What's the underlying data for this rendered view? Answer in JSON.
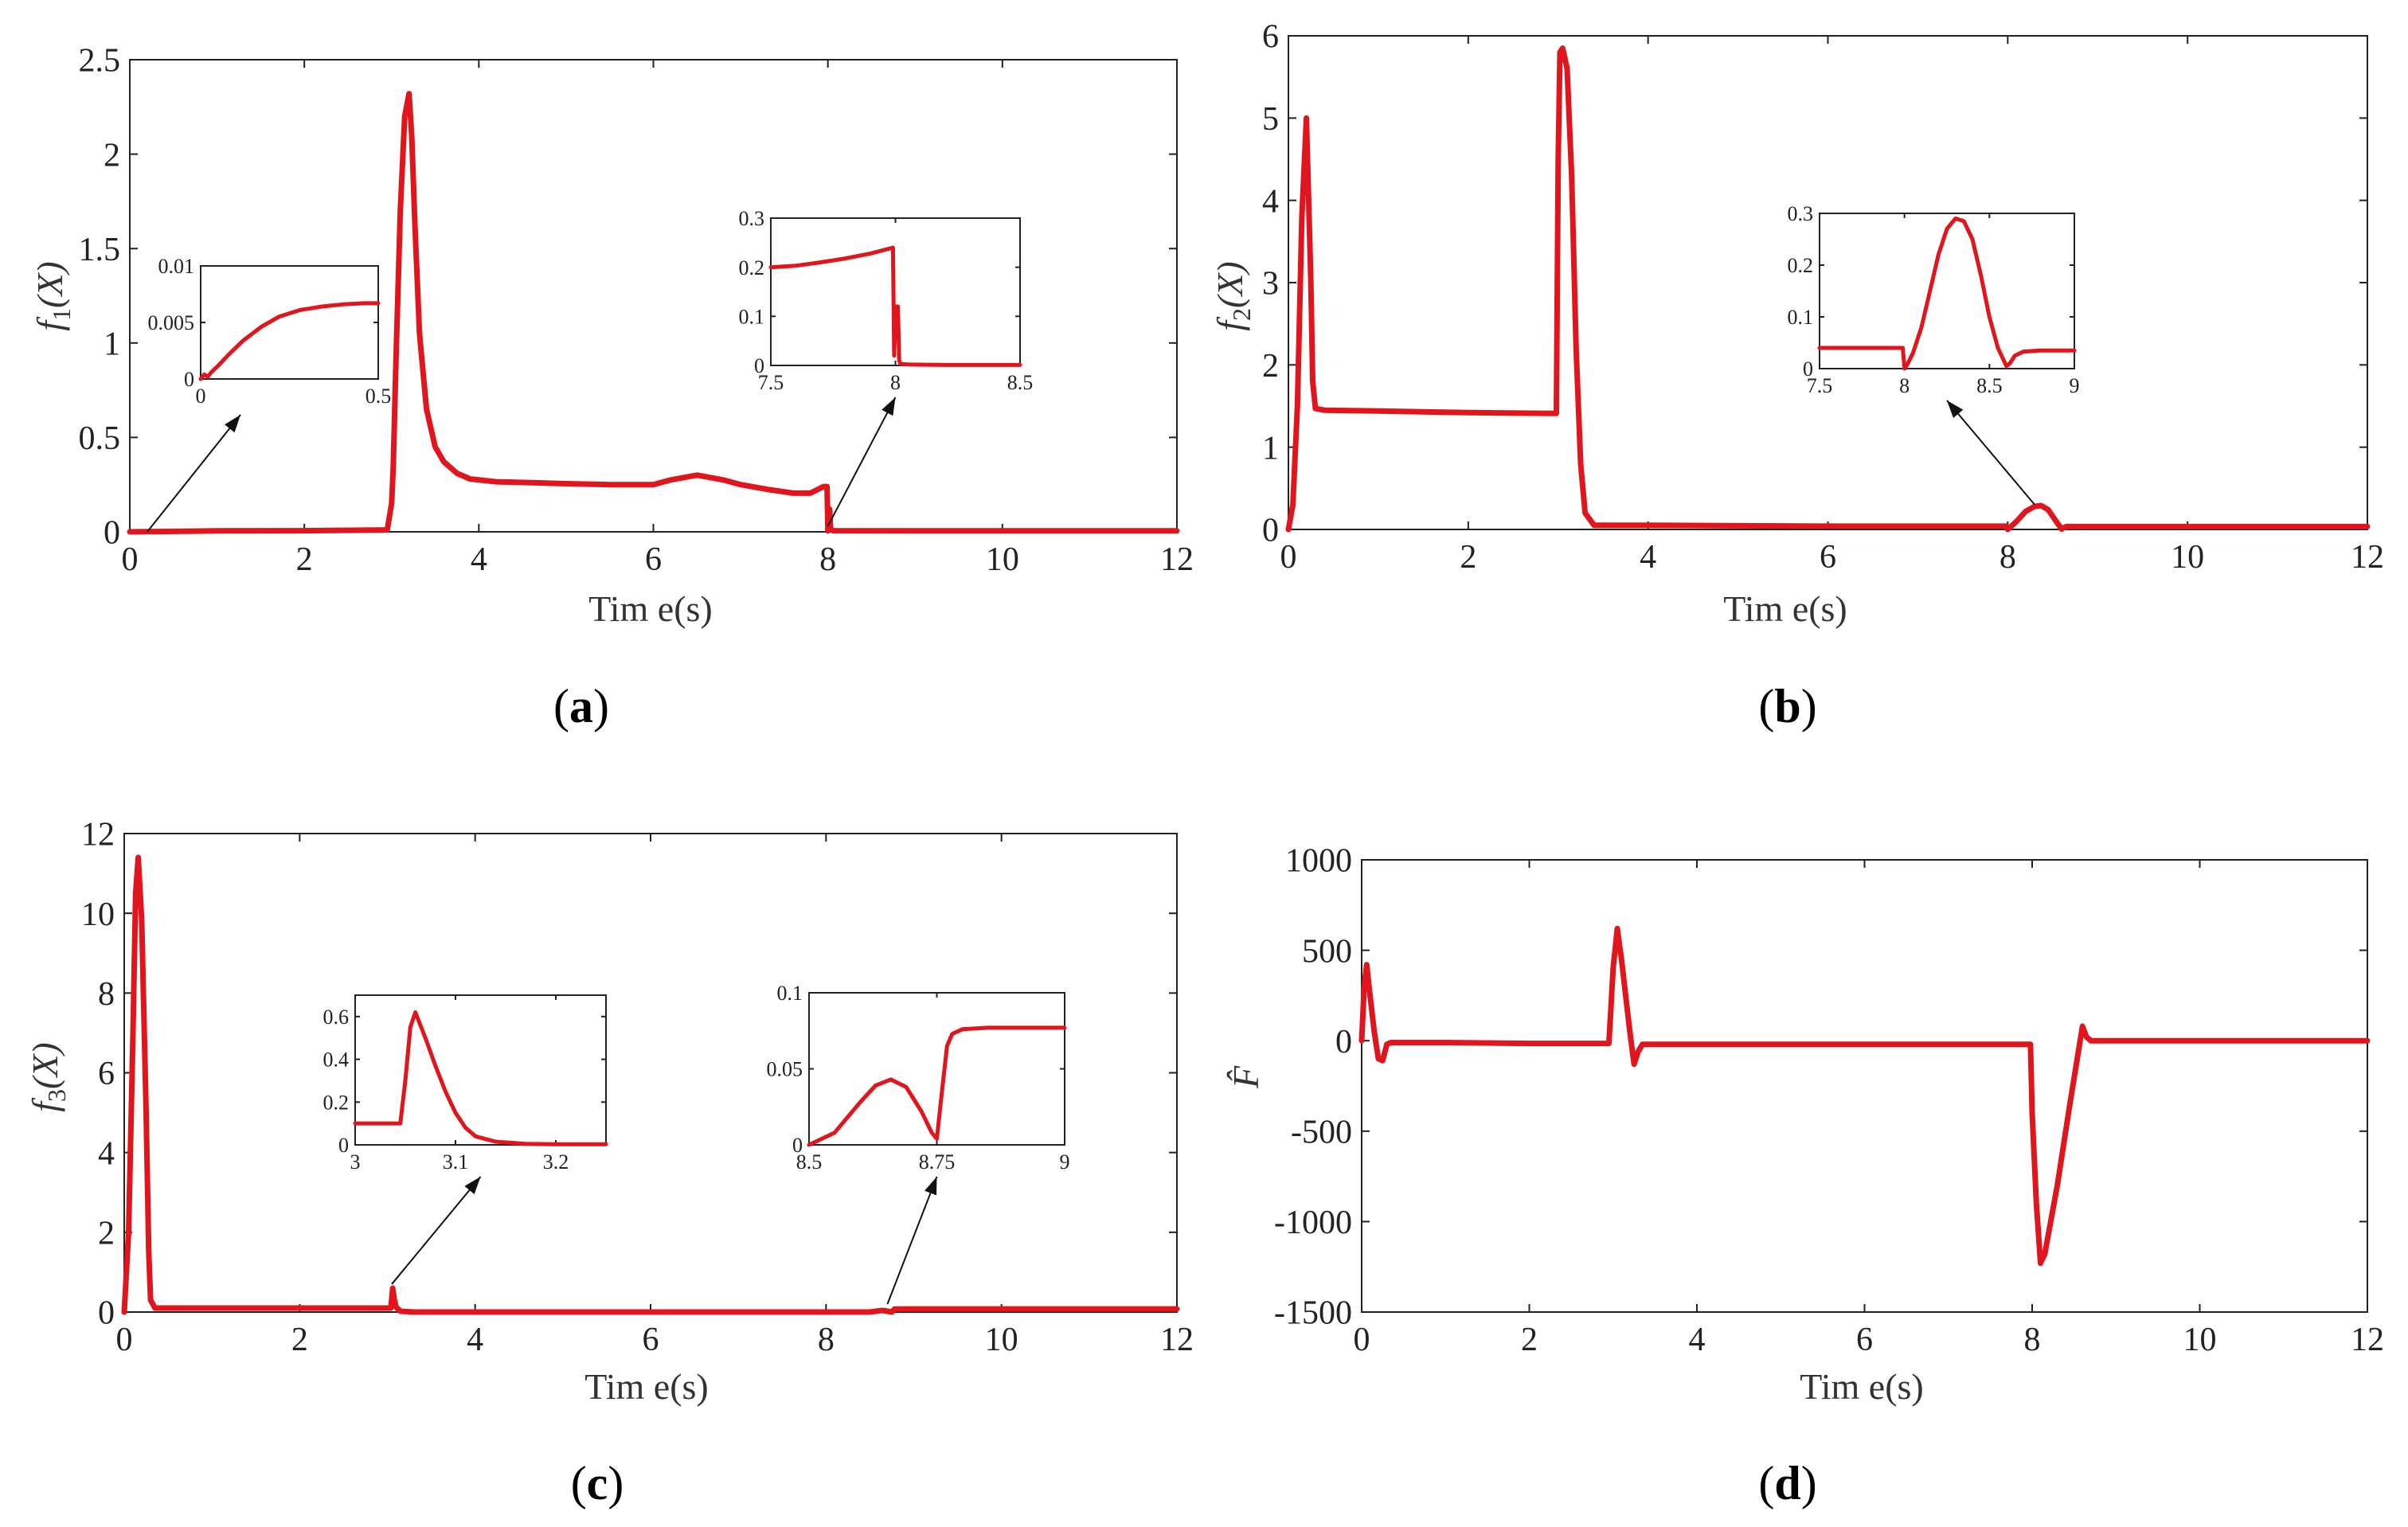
{
  "figure": {
    "panels": [
      {
        "id": "a",
        "caption_letter": "a",
        "caption": "(a)",
        "ylabel": "f1(X)",
        "ylabel_base": "f",
        "ylabel_sub": "1",
        "ylabel_arg": "(X)",
        "xlabel": "Tim e(s)",
        "color": "#e0151d"
      },
      {
        "id": "b",
        "caption_letter": "b",
        "caption": "(b)",
        "ylabel": "f2(X)",
        "ylabel_base": "f",
        "ylabel_sub": "2",
        "ylabel_arg": "(X)",
        "xlabel": "Tim e(s)",
        "color": "#e0151d"
      },
      {
        "id": "c",
        "caption_letter": "c",
        "caption": "(c)",
        "ylabel": "f3(X)",
        "ylabel_base": "f",
        "ylabel_sub": "3",
        "ylabel_arg": "(X)",
        "xlabel": "Tim e(s)",
        "color": "#e0151d"
      },
      {
        "id": "d",
        "caption_letter": "d",
        "caption": "(d)",
        "ylabel": "F̂",
        "ylabel_base": "F̂",
        "ylabel_sub": "",
        "ylabel_arg": "",
        "xlabel": "Tim e(s)",
        "color": "#e0151d"
      }
    ]
  },
  "chart_data": [
    {
      "panel": "a",
      "type": "line",
      "title": "",
      "xlabel": "Time(s)",
      "ylabel": "f1(X)",
      "xlim": [
        0,
        12
      ],
      "ylim": [
        0,
        2.5
      ],
      "xticks": [
        0,
        2,
        4,
        6,
        8,
        10,
        12
      ],
      "yticks": [
        0,
        0.5,
        1,
        1.5,
        2,
        2.5
      ],
      "xtick_labels": [
        "0",
        "2",
        "4",
        "6",
        "8",
        "10",
        "12"
      ],
      "ytick_labels": [
        "0",
        "0.5",
        "1",
        "1.5",
        "2",
        "2.5"
      ],
      "series": [
        {
          "name": "f1(X)",
          "x": [
            0,
            1.0,
            2.0,
            2.95,
            3.0,
            3.02,
            3.05,
            3.1,
            3.15,
            3.2,
            3.23,
            3.27,
            3.32,
            3.4,
            3.5,
            3.6,
            3.75,
            3.9,
            4.2,
            4.6,
            5.0,
            5.5,
            6.0,
            6.2,
            6.5,
            6.8,
            7.0,
            7.3,
            7.6,
            7.8,
            7.95,
            7.99,
            8.0,
            8.01,
            8.02,
            8.03,
            8.04,
            8.06,
            9.0,
            10.0,
            11.0,
            12.0
          ],
          "y": [
            0,
            0.005,
            0.006,
            0.01,
            0.15,
            0.35,
            0.9,
            1.7,
            2.2,
            2.32,
            2.1,
            1.6,
            1.05,
            0.65,
            0.45,
            0.37,
            0.31,
            0.28,
            0.265,
            0.26,
            0.255,
            0.25,
            0.25,
            0.275,
            0.3,
            0.275,
            0.25,
            0.225,
            0.205,
            0.205,
            0.24,
            0.24,
            0.005,
            0.12,
            0.12,
            0.02,
            0.01,
            0.006,
            0.005,
            0.005,
            0.005,
            0.005
          ]
        }
      ],
      "insets": [
        {
          "xlim": [
            0,
            0.5
          ],
          "ylim": [
            0,
            0.01
          ],
          "xticks": [
            0,
            0.5
          ],
          "yticks": [
            0,
            0.005,
            0.01
          ],
          "xtick_labels": [
            "0",
            "0.5"
          ],
          "ytick_labels": [
            "0",
            "0.005",
            "0.01"
          ],
          "x": [
            0,
            0.01,
            0.02,
            0.03,
            0.05,
            0.08,
            0.12,
            0.17,
            0.22,
            0.28,
            0.34,
            0.4,
            0.46,
            0.5
          ],
          "y": [
            0,
            0.0004,
            0.0002,
            0.0006,
            0.0012,
            0.0022,
            0.0034,
            0.0046,
            0.0055,
            0.0061,
            0.0064,
            0.0066,
            0.0067,
            0.0067
          ],
          "arrow_from_data": [
            0.2,
            0.0
          ],
          "arrow_to_inset": "bottom-left"
        },
        {
          "xlim": [
            7.5,
            8.5
          ],
          "ylim": [
            0,
            0.3
          ],
          "xticks": [
            7.5,
            8,
            8.5
          ],
          "yticks": [
            0,
            0.1,
            0.2,
            0.3
          ],
          "xtick_labels": [
            "7.5",
            "8",
            "8.5"
          ],
          "ytick_labels": [
            "0",
            "0.1",
            "0.2",
            "0.3"
          ],
          "x": [
            7.5,
            7.6,
            7.7,
            7.8,
            7.9,
            7.99,
            7.995,
            8.0,
            8.005,
            8.01,
            8.015,
            8.02,
            8.05,
            8.2,
            8.5
          ],
          "y": [
            0.2,
            0.203,
            0.21,
            0.218,
            0.228,
            0.24,
            0.02,
            0.1,
            0.12,
            0.12,
            0.01,
            0.003,
            0.002,
            0.001,
            0.001
          ],
          "arrow_from_data": [
            8.0,
            0.03
          ],
          "arrow_to_inset": "bottom-middle"
        }
      ]
    },
    {
      "panel": "b",
      "type": "line",
      "title": "",
      "xlabel": "Time(s)",
      "ylabel": "f2(X)",
      "xlim": [
        0,
        12
      ],
      "ylim": [
        0,
        6
      ],
      "xticks": [
        0,
        2,
        4,
        6,
        8,
        10,
        12
      ],
      "yticks": [
        0,
        1,
        2,
        3,
        4,
        5,
        6
      ],
      "xtick_labels": [
        "0",
        "2",
        "4",
        "6",
        "8",
        "10",
        "12"
      ],
      "ytick_labels": [
        "0",
        "1",
        "2",
        "3",
        "4",
        "5",
        "6"
      ],
      "series": [
        {
          "name": "f2(X)",
          "x": [
            0,
            0.05,
            0.1,
            0.15,
            0.2,
            0.25,
            0.27,
            0.3,
            0.4,
            1.0,
            2.0,
            2.98,
            3.0,
            3.02,
            3.05,
            3.1,
            3.15,
            3.2,
            3.25,
            3.3,
            3.4,
            4.0,
            6.0,
            7.98,
            8.0,
            8.1,
            8.2,
            8.3,
            8.37,
            8.45,
            8.55,
            8.6,
            8.62,
            8.65,
            9.0,
            12.0
          ],
          "y": [
            0,
            0.3,
            1.5,
            3.8,
            5.0,
            3.0,
            1.8,
            1.47,
            1.45,
            1.44,
            1.42,
            1.41,
            4.5,
            5.8,
            5.85,
            5.6,
            4.3,
            2.2,
            0.8,
            0.2,
            0.05,
            0.05,
            0.04,
            0.04,
            0.0,
            0.1,
            0.22,
            0.28,
            0.29,
            0.24,
            0.08,
            0.005,
            0.02,
            0.035,
            0.035,
            0.035
          ]
        }
      ],
      "insets": [
        {
          "xlim": [
            7.5,
            9
          ],
          "ylim": [
            0,
            0.3
          ],
          "xticks": [
            7.5,
            8,
            8.5,
            9
          ],
          "yticks": [
            0,
            0.1,
            0.2,
            0.3
          ],
          "xtick_labels": [
            "7.5",
            "8",
            "8.5",
            "9"
          ],
          "ytick_labels": [
            "0",
            "0.1",
            "0.2",
            "0.3"
          ],
          "x": [
            7.5,
            7.8,
            7.99,
            8.0,
            8.02,
            8.05,
            8.1,
            8.15,
            8.2,
            8.25,
            8.3,
            8.35,
            8.4,
            8.45,
            8.5,
            8.55,
            8.6,
            8.62,
            8.65,
            8.7,
            8.8,
            9.0
          ],
          "y": [
            0.04,
            0.04,
            0.04,
            0.0,
            0.01,
            0.03,
            0.08,
            0.15,
            0.22,
            0.27,
            0.29,
            0.285,
            0.25,
            0.18,
            0.1,
            0.04,
            0.005,
            0.01,
            0.025,
            0.033,
            0.035,
            0.035
          ],
          "arrow_from_data": [
            8.3,
            0.3
          ],
          "arrow_to_inset": "bottom-middle"
        }
      ]
    },
    {
      "panel": "c",
      "type": "line",
      "title": "",
      "xlabel": "Time(s)",
      "ylabel": "f3(X)",
      "xlim": [
        0,
        12
      ],
      "ylim": [
        0,
        12
      ],
      "xticks": [
        0,
        2,
        4,
        6,
        8,
        10,
        12
      ],
      "yticks": [
        0,
        2,
        4,
        6,
        8,
        10,
        12
      ],
      "xtick_labels": [
        "0",
        "2",
        "4",
        "6",
        "8",
        "10",
        "12"
      ],
      "ytick_labels": [
        "0",
        "2",
        "4",
        "6",
        "8",
        "10",
        "12"
      ],
      "series": [
        {
          "name": "f3(X)",
          "x": [
            0,
            0.05,
            0.1,
            0.13,
            0.16,
            0.2,
            0.25,
            0.28,
            0.3,
            0.35,
            1.0,
            2.0,
            3.0,
            3.04,
            3.06,
            3.08,
            3.1,
            3.15,
            3.3,
            5.0,
            7.0,
            8.5,
            8.6,
            8.65,
            8.7,
            8.75,
            8.78,
            9.0,
            12.0
          ],
          "y": [
            0,
            2.0,
            7.0,
            10.5,
            11.4,
            9.8,
            5.0,
            1.5,
            0.3,
            0.1,
            0.1,
            0.1,
            0.1,
            0.1,
            0.6,
            0.3,
            0.12,
            0.02,
            0.0,
            0.0,
            0.0,
            0.0,
            0.03,
            0.04,
            0.02,
            0.0,
            0.075,
            0.078,
            0.078
          ]
        }
      ],
      "insets": [
        {
          "xlim": [
            3,
            3.25
          ],
          "ylim": [
            0,
            0.7
          ],
          "xticks": [
            3,
            3.1,
            3.2
          ],
          "yticks": [
            0,
            0.2,
            0.4,
            0.6
          ],
          "xtick_labels": [
            "3",
            "3.1",
            "3.2"
          ],
          "ytick_labels": [
            "0",
            "0.2",
            "0.4",
            "0.6"
          ],
          "x": [
            3.0,
            3.02,
            3.045,
            3.05,
            3.055,
            3.06,
            3.07,
            3.08,
            3.09,
            3.1,
            3.11,
            3.12,
            3.14,
            3.17,
            3.2,
            3.25
          ],
          "y": [
            0.1,
            0.1,
            0.1,
            0.3,
            0.55,
            0.62,
            0.5,
            0.37,
            0.25,
            0.15,
            0.08,
            0.04,
            0.015,
            0.005,
            0.003,
            0.003
          ],
          "arrow_from_data": [
            3.05,
            0.7
          ],
          "arrow_to_inset": "bottom-middle"
        },
        {
          "xlim": [
            8.5,
            9
          ],
          "ylim": [
            0,
            0.1
          ],
          "xticks": [
            8.5,
            8.75,
            9
          ],
          "yticks": [
            0,
            0.05,
            0.1
          ],
          "xtick_labels": [
            "8.5",
            "8.75",
            "9"
          ],
          "ytick_labels": [
            "0",
            "0.05",
            "0.1"
          ],
          "x": [
            8.5,
            8.55,
            8.6,
            8.63,
            8.66,
            8.69,
            8.72,
            8.74,
            8.75,
            8.76,
            8.77,
            8.78,
            8.8,
            8.85,
            9.0
          ],
          "y": [
            0.0,
            0.008,
            0.028,
            0.039,
            0.043,
            0.038,
            0.022,
            0.008,
            0.004,
            0.035,
            0.065,
            0.073,
            0.076,
            0.077,
            0.077
          ],
          "arrow_from_data": [
            8.7,
            0.2
          ],
          "arrow_to_inset": "bottom-middle"
        }
      ]
    },
    {
      "panel": "d",
      "type": "line",
      "title": "",
      "xlabel": "Time(s)",
      "ylabel": "F̂",
      "xlim": [
        0,
        12
      ],
      "ylim": [
        -1500,
        1000
      ],
      "xticks": [
        0,
        2,
        4,
        6,
        8,
        10,
        12
      ],
      "yticks": [
        -1500,
        -1000,
        -500,
        0,
        500,
        1000
      ],
      "xtick_labels": [
        "0",
        "2",
        "4",
        "6",
        "8",
        "10",
        "12"
      ],
      "ytick_labels": [
        "-1500",
        "-1000",
        "-500",
        "0",
        "500",
        "1000"
      ],
      "series": [
        {
          "name": "F̂",
          "x": [
            0,
            0.03,
            0.06,
            0.1,
            0.15,
            0.2,
            0.25,
            0.3,
            0.35,
            1.0,
            2.0,
            2.95,
            3.0,
            3.05,
            3.1,
            3.15,
            3.2,
            3.25,
            3.3,
            3.35,
            4.0,
            6.0,
            7.98,
            8.0,
            8.05,
            8.1,
            8.15,
            8.3,
            8.45,
            8.6,
            8.65,
            8.7,
            9.0,
            12.0
          ],
          "y": [
            0,
            300,
            420,
            250,
            50,
            -100,
            -110,
            -20,
            -10,
            -10,
            -15,
            -15,
            400,
            620,
            450,
            250,
            50,
            -130,
            -60,
            -20,
            -20,
            -20,
            -20,
            -400,
            -900,
            -1230,
            -1180,
            -800,
            -350,
            80,
            20,
            0,
            0,
            0
          ]
        }
      ],
      "insets": []
    }
  ]
}
